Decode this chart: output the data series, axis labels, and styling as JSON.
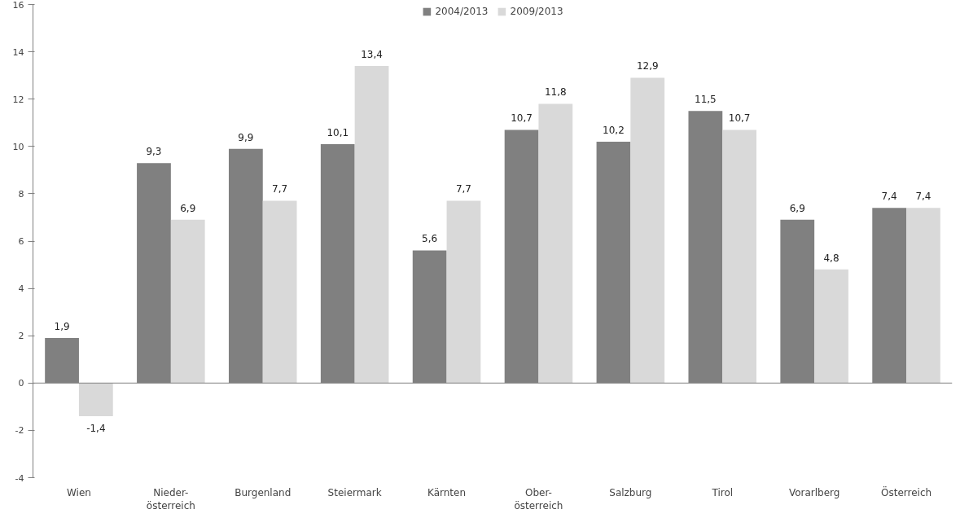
{
  "chart_data": {
    "type": "bar",
    "categories": [
      "Wien",
      "Nieder-\nösterreich",
      "Burgenland",
      "Steiermark",
      "Kärnten",
      "Ober-\nösterreich",
      "Salzburg",
      "Tirol",
      "Vorarlberg",
      "Österreich"
    ],
    "series": [
      {
        "name": "2004/2013",
        "color": "#808080",
        "values": [
          1.9,
          9.3,
          9.9,
          10.1,
          5.6,
          10.7,
          10.2,
          11.5,
          6.9,
          7.4
        ],
        "value_labels": [
          "1,9",
          "9,3",
          "9,9",
          "10,1",
          "5,6",
          "10,7",
          "10,2",
          "11,5",
          "6,9",
          "7,4"
        ]
      },
      {
        "name": "2009/2013",
        "color": "#d9d9d9",
        "values": [
          -1.4,
          6.9,
          7.7,
          13.4,
          7.7,
          11.8,
          12.9,
          10.7,
          4.8,
          7.4
        ],
        "value_labels": [
          "-1,4",
          "6,9",
          "7,7",
          "13,4",
          "7,7",
          "11,8",
          "12,9",
          "10,7",
          "4,8",
          "7,4"
        ]
      }
    ],
    "ylim": [
      -4,
      16
    ],
    "yticks": [
      -4,
      -2,
      0,
      2,
      4,
      6,
      8,
      10,
      12,
      14,
      16
    ],
    "legend": "top"
  }
}
